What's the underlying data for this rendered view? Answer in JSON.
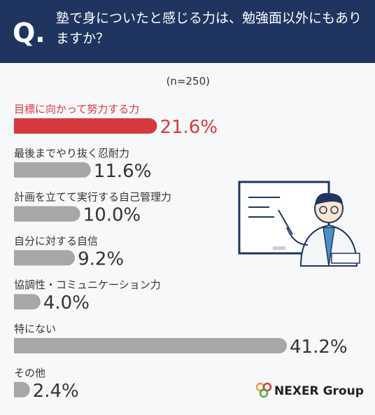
{
  "chart_data": {
    "type": "hbar",
    "question_mark": "Q.",
    "title": "塾で身についたと感じる力は、勉強面以外にもありますか？",
    "sample": "(n=250)",
    "categories": [
      "目標に向かって努力する力",
      "最後までやり抜く忍耐力",
      "計画を立てて実行する自己管理力",
      "自分に対する自信",
      "協調性・コミュニケーション力",
      "特にない",
      "その他"
    ],
    "values": [
      21.6,
      11.6,
      10.0,
      9.2,
      4.0,
      41.2,
      2.4
    ],
    "value_labels": [
      "21.6%",
      "11.6%",
      "10.0%",
      "9.2%",
      "4.0%",
      "41.2%",
      "2.4%"
    ],
    "colors": [
      "#d63a3f",
      "#a7a7a7",
      "#a7a7a7",
      "#a7a7a7",
      "#a7a7a7",
      "#a7a7a7",
      "#a7a7a7"
    ],
    "label_colors": [
      "#d63a3f",
      "#333333",
      "#333333",
      "#333333",
      "#333333",
      "#333333",
      "#333333"
    ],
    "logo": "NEXER Group"
  }
}
